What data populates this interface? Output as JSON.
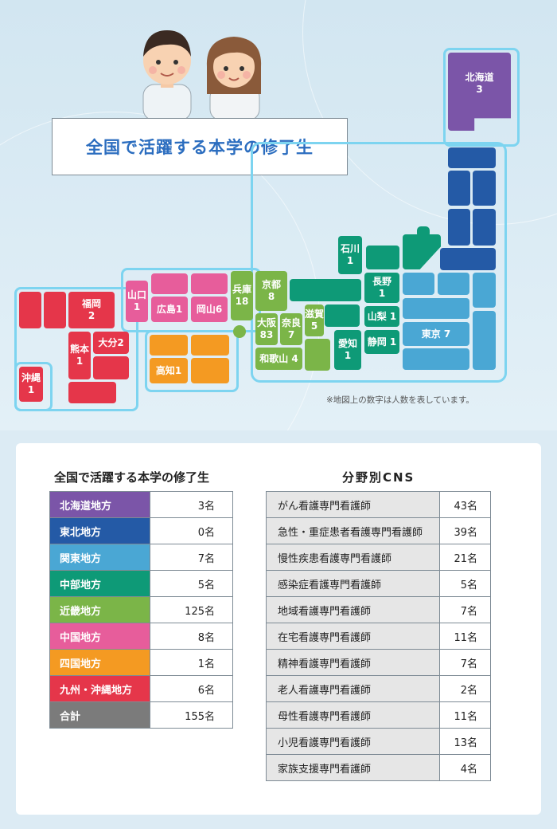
{
  "map": {
    "title": "全国で活躍する本学の修了生",
    "note": "※地図上の数字は人数を表しています。",
    "prefectures": {
      "hokkaido": "北海道\n3",
      "ishikawa": "石川\n1",
      "nagano": "長野\n1",
      "yamanashi": "山梨 1",
      "shizuoka": "静岡 1",
      "aichi": "愛知\n1",
      "tokyo": "東京 7",
      "kyoto": "京都\n8",
      "osaka": "大阪\n83",
      "nara": "奈良\n7",
      "shiga": "滋賀\n5",
      "wakayama": "和歌山 4",
      "hyogo": "兵庫\n18",
      "yamaguchi": "山口\n1",
      "hiroshima": "広島1",
      "okayama": "岡山6",
      "kochi": "高知1",
      "fukuoka": "福岡\n2",
      "kumamoto": "熊本\n1",
      "oita": "大分2",
      "okinawa": "沖縄\n1"
    }
  },
  "regions_table": {
    "title": "全国で活躍する本学の修了生",
    "rows": [
      {
        "label": "北海道地方",
        "value": "3名",
        "color": "#7b55a8"
      },
      {
        "label": "東北地方",
        "value": "0名",
        "color": "#245aa6"
      },
      {
        "label": "関東地方",
        "value": "7名",
        "color": "#4aa7d4"
      },
      {
        "label": "中部地方",
        "value": "5名",
        "color": "#0e9a77"
      },
      {
        "label": "近畿地方",
        "value": "125名",
        "color": "#7bb548"
      },
      {
        "label": "中国地方",
        "value": "8名",
        "color": "#e75d9b"
      },
      {
        "label": "四国地方",
        "value": "1名",
        "color": "#f49a22"
      },
      {
        "label": "九州・沖縄地方",
        "value": "6名",
        "color": "#e5364a"
      },
      {
        "label": "合計",
        "value": "155名",
        "color": "#7b7b7b"
      }
    ]
  },
  "cns_table": {
    "title": "分野別CNS",
    "rows": [
      {
        "label": "がん看護専門看護師",
        "value": "43名"
      },
      {
        "label": "急性・重症患者看護専門看護師",
        "value": "39名"
      },
      {
        "label": "慢性疾患看護専門看護師",
        "value": "21名"
      },
      {
        "label": "感染症看護専門看護師",
        "value": "5名"
      },
      {
        "label": "地域看護専門看護師",
        "value": "7名"
      },
      {
        "label": "在宅看護専門看護師",
        "value": "11名"
      },
      {
        "label": "精神看護専門看護師",
        "value": "7名"
      },
      {
        "label": "老人看護専門看護師",
        "value": "2名"
      },
      {
        "label": "母性看護専門看護師",
        "value": "11名"
      },
      {
        "label": "小児看護専門看護師",
        "value": "13名"
      },
      {
        "label": "家族支援専門看護師",
        "value": "4名"
      }
    ]
  }
}
